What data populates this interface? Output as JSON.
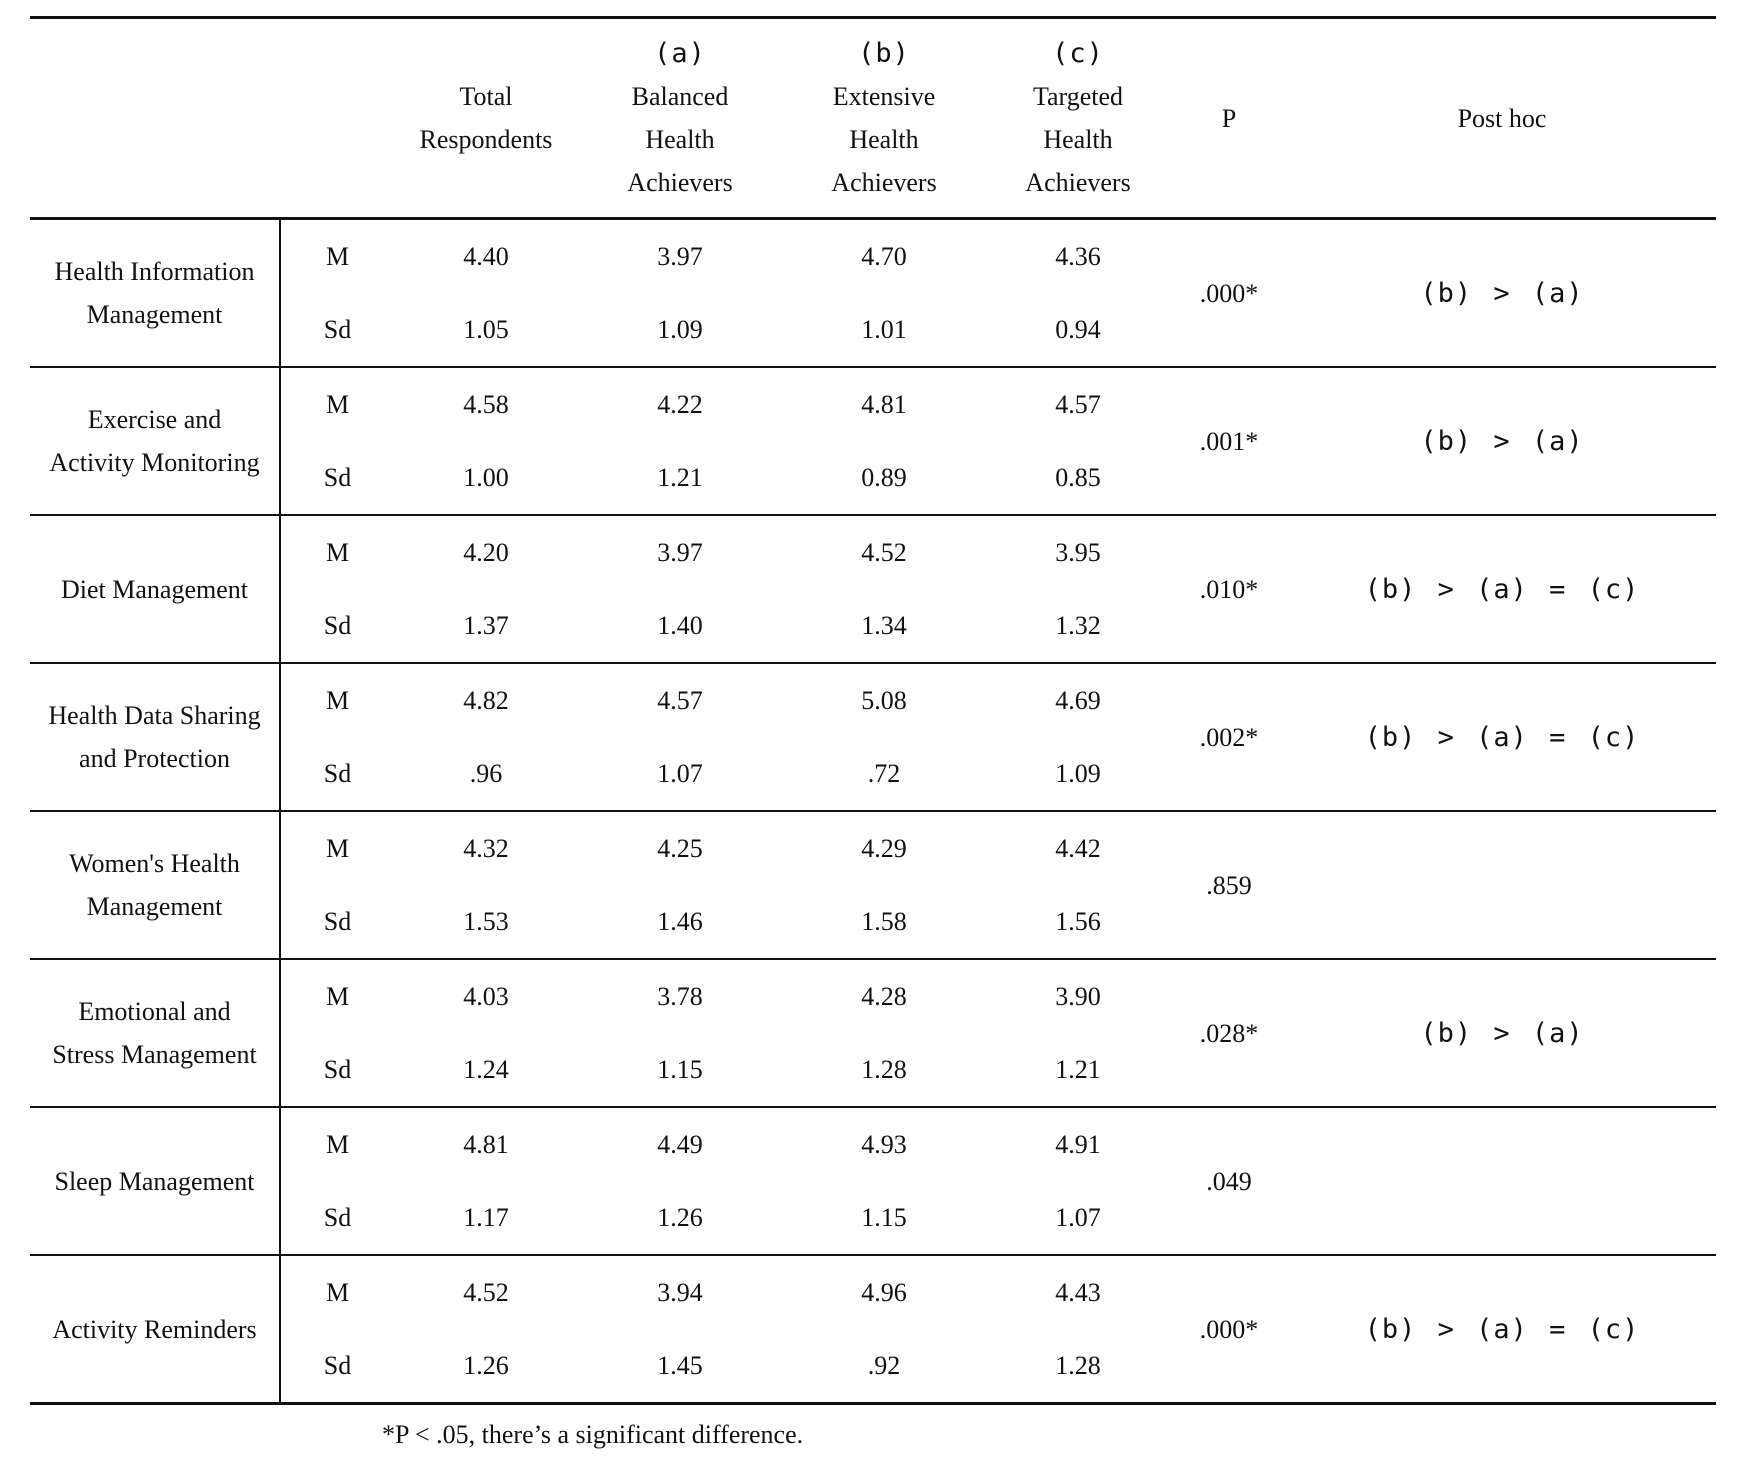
{
  "header": {
    "total": [
      "Total",
      "Respondents"
    ],
    "groups": [
      {
        "tag": "(a)",
        "lines": [
          "Balanced",
          "Health",
          "Achievers"
        ]
      },
      {
        "tag": "(b)",
        "lines": [
          "Extensive",
          "Health",
          "Achievers"
        ]
      },
      {
        "tag": "(c)",
        "lines": [
          "Targeted",
          "Health",
          "Achievers"
        ]
      }
    ],
    "p": "P",
    "posthoc": "Post hoc"
  },
  "stat_labels": {
    "m": "M",
    "sd": "Sd"
  },
  "rows": [
    {
      "category": [
        "Health Information",
        "Management"
      ],
      "m": [
        "4.40",
        "3.97",
        "4.70",
        "4.36"
      ],
      "sd": [
        "1.05",
        "1.09",
        "1.01",
        "0.94"
      ],
      "p": ".000*",
      "posthoc": "(b) > (a)"
    },
    {
      "category": [
        "Exercise and",
        "Activity Monitoring"
      ],
      "m": [
        "4.58",
        "4.22",
        "4.81",
        "4.57"
      ],
      "sd": [
        "1.00",
        "1.21",
        "0.89",
        "0.85"
      ],
      "p": ".001*",
      "posthoc": "(b) > (a)"
    },
    {
      "category": [
        "Diet Management"
      ],
      "m": [
        "4.20",
        "3.97",
        "4.52",
        "3.95"
      ],
      "sd": [
        "1.37",
        "1.40",
        "1.34",
        "1.32"
      ],
      "p": ".010*",
      "posthoc": "(b) > (a) = (c)"
    },
    {
      "category": [
        "Health Data Sharing",
        "and Protection"
      ],
      "m": [
        "4.82",
        "4.57",
        "5.08",
        "4.69"
      ],
      "sd": [
        ".96",
        "1.07",
        ".72",
        "1.09"
      ],
      "p": ".002*",
      "posthoc": "(b) > (a) = (c)"
    },
    {
      "category": [
        "Women's Health",
        "Management"
      ],
      "m": [
        "4.32",
        "4.25",
        "4.29",
        "4.42"
      ],
      "sd": [
        "1.53",
        "1.46",
        "1.58",
        "1.56"
      ],
      "p": ".859",
      "posthoc": ""
    },
    {
      "category": [
        "Emotional and",
        "Stress Management"
      ],
      "m": [
        "4.03",
        "3.78",
        "4.28",
        "3.90"
      ],
      "sd": [
        "1.24",
        "1.15",
        "1.28",
        "1.21"
      ],
      "p": ".028*",
      "posthoc": "(b) > (a)"
    },
    {
      "category": [
        "Sleep Management"
      ],
      "m": [
        "4.81",
        "4.49",
        "4.93",
        "4.91"
      ],
      "sd": [
        "1.17",
        "1.26",
        "1.15",
        "1.07"
      ],
      "p": ".049",
      "posthoc": ""
    },
    {
      "category": [
        "Activity Reminders"
      ],
      "m": [
        "4.52",
        "3.94",
        "4.96",
        "4.43"
      ],
      "sd": [
        "1.26",
        "1.45",
        ".92",
        "1.28"
      ],
      "p": ".000*",
      "posthoc": "(b) > (a) = (c)"
    }
  ],
  "footnote": "*P < .05, there’s a significant difference."
}
